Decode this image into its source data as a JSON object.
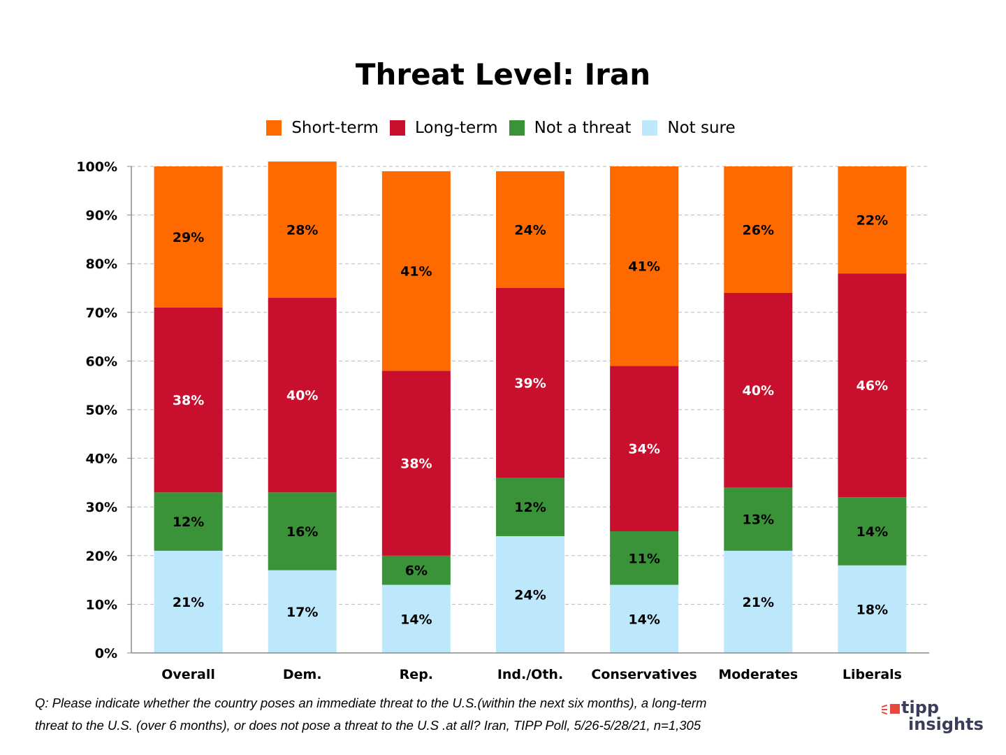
{
  "chart_data": {
    "type": "bar",
    "stacked": true,
    "title": "Threat Level:  Iran",
    "xlabel": "",
    "ylabel": "",
    "ylim": [
      0,
      100
    ],
    "yticks": [
      "0%",
      "10%",
      "20%",
      "30%",
      "40%",
      "50%",
      "60%",
      "70%",
      "80%",
      "90%",
      "100%"
    ],
    "grid": true,
    "legend_position": "top",
    "categories": [
      "Overall",
      "Dem.",
      "Rep.",
      "Ind./Oth.",
      "Conservatives",
      "Moderates",
      "Liberals"
    ],
    "series": [
      {
        "name": "Not sure",
        "color": "#bde7fb",
        "label_color": "#000000",
        "values": [
          21,
          17,
          14,
          24,
          14,
          21,
          18
        ]
      },
      {
        "name": "Not a threat",
        "color": "#3a9338",
        "label_color": "#000000",
        "values": [
          12,
          16,
          6,
          12,
          11,
          13,
          14
        ]
      },
      {
        "name": "Long-term",
        "color": "#c8102e",
        "label_color": "#ffffff",
        "values": [
          38,
          40,
          38,
          39,
          34,
          40,
          46
        ]
      },
      {
        "name": "Short-term",
        "color": "#ff6a00",
        "label_color": "#000000",
        "values": [
          29,
          28,
          41,
          24,
          41,
          26,
          22
        ]
      }
    ],
    "legend_order": [
      "Short-term",
      "Long-term",
      "Not a threat",
      "Not sure"
    ]
  },
  "footnote": {
    "line1": "Q:  Please indicate whether the country poses an immediate threat to the  U.S.(within the next six months), a long-term",
    "line2": "threat to the  U.S. (over 6 months), or does not pose a threat to the U.S .at all? Iran, TIPP Poll, 5/26-5/28/21, n=1,305"
  },
  "logo": {
    "line1": "tipp",
    "line2": "insights",
    "color": "#3a3e5c",
    "accent": "#e8483b"
  }
}
